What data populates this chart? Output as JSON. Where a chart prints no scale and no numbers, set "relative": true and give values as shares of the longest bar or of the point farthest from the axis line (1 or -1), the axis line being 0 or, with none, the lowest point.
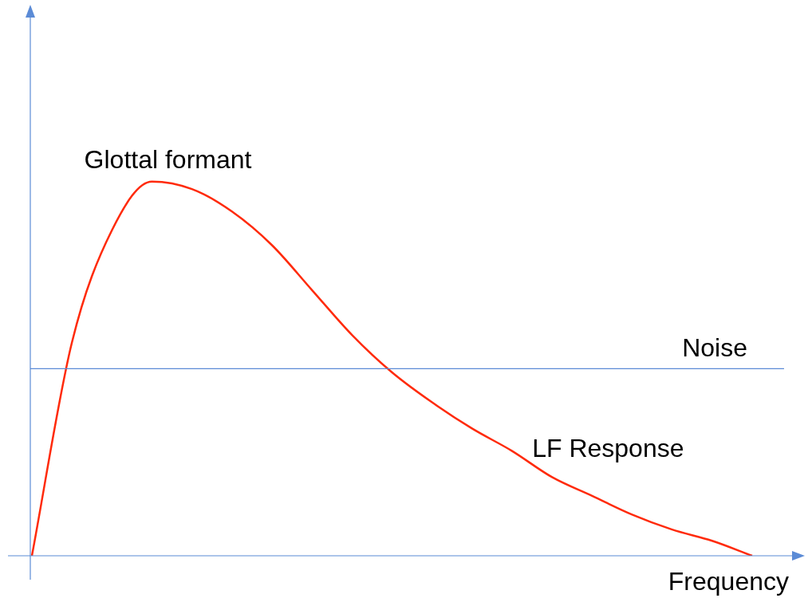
{
  "chart_data": {
    "type": "line",
    "relative": true,
    "xlabel": "Frequency",
    "categories": [
      null,
      null,
      null,
      null,
      null,
      null,
      null,
      null,
      null,
      null,
      null,
      null,
      null,
      null,
      null,
      null,
      null,
      null,
      null
    ],
    "series": [
      {
        "name": "LF Response",
        "color": "#ff2a0a",
        "values": [
          0,
          0.57,
          0.87,
          1,
          0.98,
          0.92,
          0.83,
          0.71,
          0.59,
          0.49,
          0.41,
          0.34,
          0.28,
          0.21,
          0.16,
          0.11,
          0.07,
          0.04,
          0
        ]
      }
    ],
    "ref_lines": [
      {
        "axis": "y",
        "value": 0.5,
        "label": "Noise",
        "color": "#5b8bd6"
      }
    ],
    "annotations": [
      "Glottal formant"
    ],
    "grid": false,
    "legend": false,
    "marker": "none",
    "line_style": "solid"
  }
}
